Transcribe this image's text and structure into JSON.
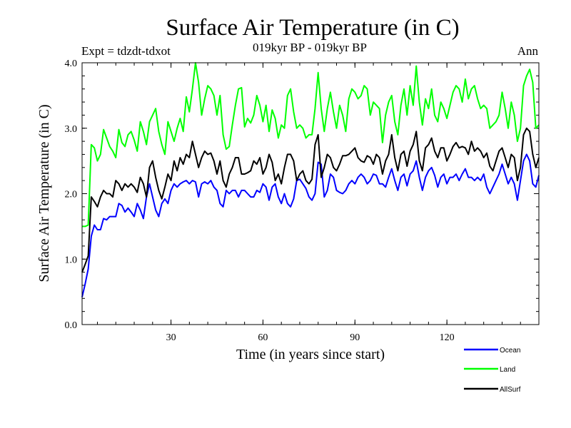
{
  "header": {
    "title": "Surface Air Temperature (in C)",
    "subtitle": "019kyr BP - 019kyr BP",
    "expt_label": "Expt = tdzdt-tdxot",
    "period_label": "Ann"
  },
  "chart_data": {
    "type": "line",
    "title": "Surface Air Temperature (in C)",
    "subtitle": "019kyr BP - 019kyr BP",
    "xlabel": "Time (in years since start)",
    "ylabel": "Surface Air Temperature (in C)",
    "xlim": [
      1,
      150
    ],
    "ylim": [
      0.0,
      4.0
    ],
    "x_ticks": [
      30,
      60,
      90,
      120
    ],
    "x_tick_labels": [
      "30",
      "60",
      "90",
      "120"
    ],
    "y_ticks": [
      0.0,
      1.0,
      2.0,
      3.0,
      4.0
    ],
    "y_tick_labels": [
      "0.0",
      "1.0",
      "2.0",
      "3.0",
      "4.0"
    ],
    "grid": false,
    "legend_position": "bottom-right, below plot",
    "series": [
      {
        "name": "Ocean",
        "color": "#0000ff",
        "values": [
          0.42,
          0.62,
          0.85,
          1.35,
          1.52,
          1.45,
          1.45,
          1.62,
          1.6,
          1.65,
          1.65,
          1.65,
          1.85,
          1.82,
          1.72,
          1.78,
          1.72,
          1.65,
          1.85,
          1.75,
          1.62,
          1.95,
          2.15,
          1.95,
          1.75,
          1.65,
          1.85,
          1.92,
          1.85,
          2.05,
          2.15,
          2.1,
          2.15,
          2.18,
          2.2,
          2.15,
          2.2,
          2.18,
          1.95,
          2.15,
          2.18,
          2.15,
          2.2,
          2.1,
          2.05,
          1.85,
          1.8,
          2.05,
          2.0,
          2.05,
          2.05,
          1.95,
          2.05,
          2.05,
          2.0,
          1.95,
          1.95,
          2.05,
          2.02,
          2.15,
          2.1,
          1.9,
          2.1,
          2.15,
          1.95,
          1.85,
          2.0,
          1.85,
          1.8,
          1.92,
          2.2,
          2.22,
          2.15,
          2.08,
          1.95,
          1.9,
          2.0,
          2.48,
          2.45,
          1.95,
          2.05,
          2.3,
          2.25,
          2.05,
          2.02,
          2.0,
          2.05,
          2.15,
          2.2,
          2.15,
          2.25,
          2.3,
          2.25,
          2.15,
          2.2,
          2.3,
          2.28,
          2.15,
          2.15,
          2.1,
          2.25,
          2.38,
          2.2,
          2.05,
          2.25,
          2.3,
          2.12,
          2.3,
          2.35,
          2.5,
          2.25,
          2.05,
          2.25,
          2.35,
          2.4,
          2.28,
          2.1,
          2.25,
          2.3,
          2.15,
          2.25,
          2.25,
          2.3,
          2.2,
          2.3,
          2.38,
          2.25,
          2.25,
          2.2,
          2.25,
          2.2,
          2.3,
          2.1,
          2.0,
          2.1,
          2.2,
          2.3,
          2.45,
          2.3,
          2.15,
          2.25,
          2.15,
          1.9,
          2.2,
          2.5,
          2.6,
          2.5,
          2.15,
          2.1,
          2.28
        ]
      },
      {
        "name": "Land",
        "color": "#00ff00",
        "values": [
          1.5,
          1.5,
          1.52,
          2.75,
          2.7,
          2.5,
          2.6,
          2.98,
          2.85,
          2.72,
          2.65,
          2.55,
          2.98,
          2.78,
          2.72,
          2.9,
          2.95,
          2.82,
          2.65,
          3.1,
          2.95,
          2.75,
          3.1,
          3.2,
          3.3,
          2.95,
          2.75,
          2.6,
          3.1,
          2.95,
          2.8,
          3.0,
          3.15,
          2.95,
          3.48,
          3.25,
          3.6,
          4.0,
          3.7,
          3.2,
          3.45,
          3.65,
          3.6,
          3.5,
          3.2,
          3.5,
          2.9,
          2.68,
          2.72,
          3.05,
          3.35,
          3.6,
          3.62,
          3.02,
          3.15,
          3.08,
          3.2,
          3.5,
          3.35,
          3.1,
          3.35,
          2.95,
          3.28,
          3.15,
          2.85,
          3.05,
          3.0,
          3.5,
          3.6,
          3.25,
          3.0,
          3.05,
          3.0,
          2.85,
          2.9,
          2.9,
          3.3,
          3.85,
          3.3,
          2.95,
          3.3,
          3.55,
          3.25,
          3.0,
          3.35,
          3.2,
          2.95,
          3.45,
          3.6,
          3.55,
          3.45,
          3.5,
          3.65,
          3.6,
          3.2,
          3.4,
          3.35,
          3.3,
          2.78,
          3.2,
          3.4,
          3.5,
          3.1,
          2.9,
          3.35,
          3.6,
          3.2,
          3.65,
          3.35,
          3.95,
          3.4,
          3.05,
          3.45,
          3.3,
          3.6,
          3.2,
          3.1,
          3.4,
          3.3,
          3.15,
          3.35,
          3.55,
          3.65,
          3.6,
          3.4,
          3.75,
          3.45,
          3.6,
          3.65,
          3.45,
          3.3,
          3.35,
          3.3,
          3.0,
          3.05,
          3.1,
          3.2,
          3.55,
          3.3,
          3.0,
          3.4,
          3.2,
          2.8,
          3.0,
          3.65,
          3.8,
          3.9,
          3.7,
          3.0,
          3.05
        ]
      },
      {
        "name": "AllSurf",
        "color": "#000000",
        "values": [
          0.8,
          0.92,
          1.05,
          1.95,
          1.88,
          1.8,
          1.95,
          2.05,
          2.0,
          2.0,
          1.95,
          2.2,
          2.15,
          2.05,
          2.15,
          2.1,
          2.15,
          2.1,
          2.02,
          2.25,
          2.15,
          1.95,
          2.4,
          2.5,
          2.25,
          2.05,
          1.92,
          2.1,
          2.3,
          2.2,
          2.5,
          2.35,
          2.55,
          2.45,
          2.6,
          2.55,
          2.8,
          2.6,
          2.4,
          2.55,
          2.65,
          2.6,
          2.62,
          2.5,
          2.3,
          2.5,
          2.2,
          2.1,
          2.3,
          2.4,
          2.55,
          2.55,
          2.3,
          2.3,
          2.32,
          2.35,
          2.5,
          2.45,
          2.55,
          2.3,
          2.4,
          2.6,
          2.48,
          2.2,
          2.3,
          2.15,
          2.4,
          2.6,
          2.6,
          2.5,
          2.2,
          2.3,
          2.35,
          2.2,
          2.15,
          2.22,
          2.75,
          2.9,
          2.25,
          2.4,
          2.6,
          2.55,
          2.4,
          2.35,
          2.45,
          2.58,
          2.58,
          2.6,
          2.65,
          2.7,
          2.55,
          2.5,
          2.48,
          2.58,
          2.55,
          2.45,
          2.6,
          2.55,
          2.3,
          2.5,
          2.6,
          2.9,
          2.55,
          2.35,
          2.6,
          2.65,
          2.42,
          2.65,
          2.75,
          2.95,
          2.5,
          2.35,
          2.7,
          2.75,
          2.85,
          2.65,
          2.55,
          2.7,
          2.7,
          2.5,
          2.6,
          2.72,
          2.78,
          2.7,
          2.72,
          2.7,
          2.6,
          2.8,
          2.65,
          2.7,
          2.65,
          2.55,
          2.62,
          2.42,
          2.35,
          2.5,
          2.65,
          2.7,
          2.55,
          2.4,
          2.6,
          2.55,
          2.2,
          2.4,
          2.9,
          3.0,
          2.95,
          2.6,
          2.4,
          2.55
        ]
      }
    ]
  }
}
